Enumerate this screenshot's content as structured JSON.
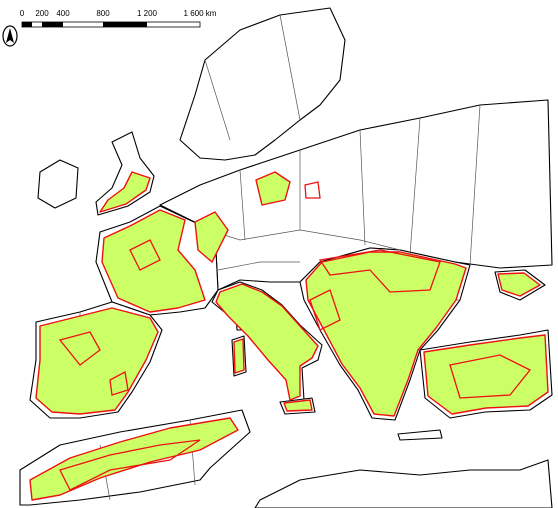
{
  "scale_bar": {
    "labels": [
      "0",
      "200",
      "400",
      "800",
      "1 200",
      "1 600 km"
    ]
  }
}
